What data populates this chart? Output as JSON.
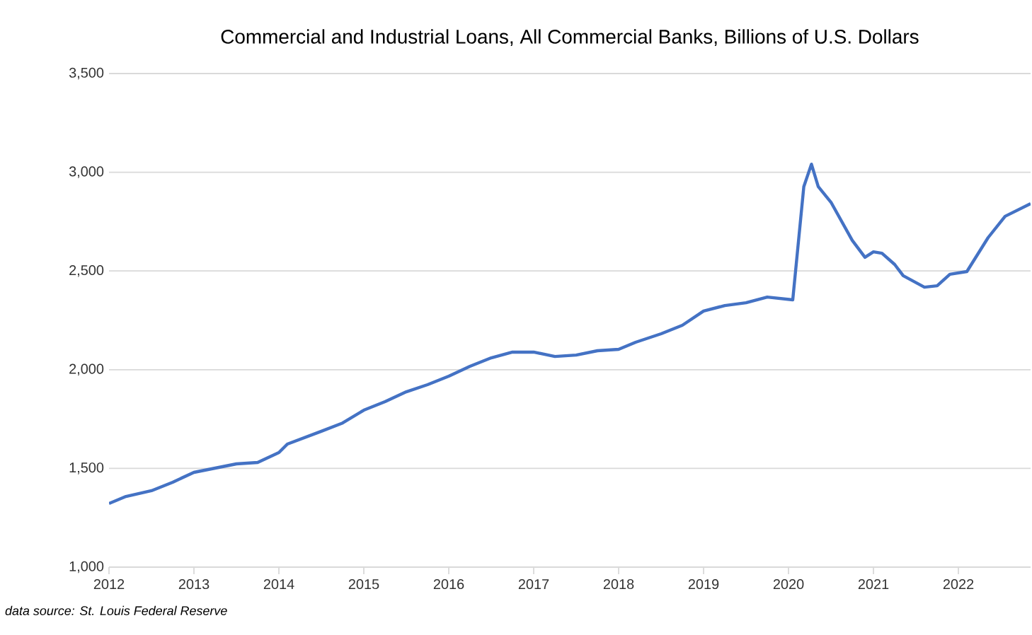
{
  "chart_data": {
    "type": "line",
    "title": "Commercial and Industrial Loans, All Commercial Banks, Billions of U.S. Dollars",
    "annotations": [
      "*data source: St. Louis Federal Reserve*"
    ],
    "x": [
      2012.0,
      2012.2,
      2012.5,
      2012.75,
      2013.0,
      2013.5,
      2013.75,
      2014.0,
      2014.1,
      2014.5,
      2014.75,
      2015.0,
      2015.25,
      2015.5,
      2015.75,
      2016.0,
      2016.25,
      2016.5,
      2016.75,
      2017.0,
      2017.25,
      2017.5,
      2017.75,
      2018.0,
      2018.2,
      2018.5,
      2018.75,
      2019.0,
      2019.25,
      2019.5,
      2019.75,
      2020.05,
      2020.18,
      2020.27,
      2020.35,
      2020.5,
      2020.75,
      2020.9,
      2021.0,
      2021.1,
      2021.25,
      2021.35,
      2021.6,
      2021.75,
      2021.9,
      2022.1,
      2022.35,
      2022.55,
      2022.85
    ],
    "series": [
      {
        "color": "#4472c4",
        "values": [
          1322,
          1358,
          1387,
          1430,
          1480,
          1523,
          1530,
          1580,
          1623,
          1688,
          1730,
          1795,
          1838,
          1888,
          1924,
          1967,
          2017,
          2060,
          2089,
          2089,
          2067,
          2074,
          2096,
          2103,
          2139,
          2182,
          2225,
          2297,
          2325,
          2339,
          2368,
          2354,
          2927,
          3041,
          2927,
          2848,
          2655,
          2569,
          2597,
          2590,
          2533,
          2476,
          2418,
          2425,
          2483,
          2497,
          2669,
          2777,
          2841
        ]
      }
    ],
    "xlim": [
      2012,
      2022.85
    ],
    "xticks": [
      2012,
      2013,
      2014,
      2015,
      2016,
      2017,
      2018,
      2019,
      2020,
      2021,
      2022
    ],
    "ylim": [
      1000,
      3500
    ],
    "yticks": [
      {
        "value": 1000,
        "label": "1,000"
      },
      {
        "value": 1500,
        "label": "1,500"
      },
      {
        "value": 2000,
        "label": "2,000"
      },
      {
        "value": 2500,
        "label": "2,500"
      },
      {
        "value": 3000,
        "label": "3,000"
      },
      {
        "value": 3500,
        "label": "3,500"
      }
    ],
    "grid": "y",
    "marker": "none",
    "line_style": "solid"
  }
}
